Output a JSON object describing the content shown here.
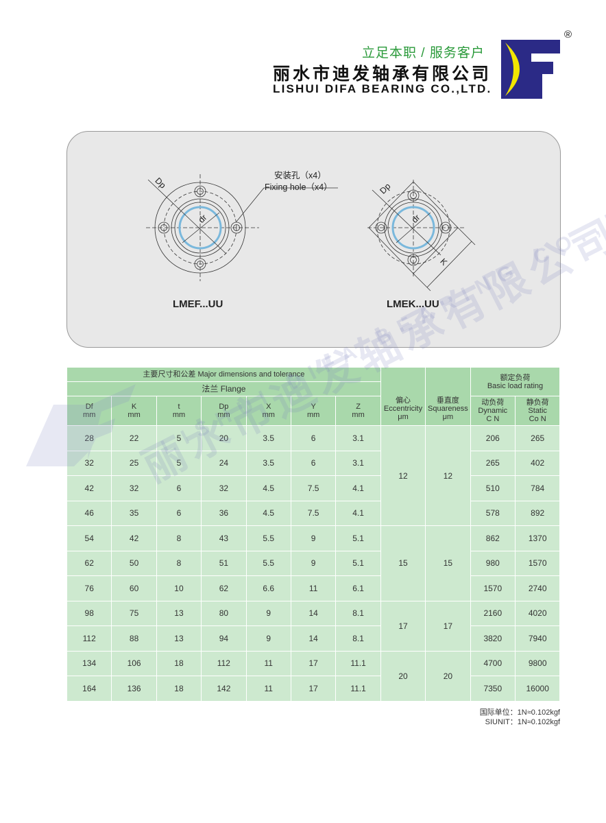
{
  "header": {
    "slogan": "立足本职 / 服务客户",
    "company_cn": "丽水市迪发轴承有限公司",
    "company_en": "LISHUI DIFA BEARING CO.,LTD.",
    "logo_text": "DF",
    "registered_mark": "®",
    "colors": {
      "logo_blue": "#2b2a86",
      "logo_yellow": "#f2e600",
      "slogan_green": "#2a9a3a"
    }
  },
  "drawing": {
    "fixing_hole_cn": "安装孔（x4）",
    "fixing_hole_en": "Fixing hole（x4）",
    "dim_dp": "Dp",
    "dim_dr": "dr",
    "dim_k": "K",
    "model_round": "LMEF...UU",
    "model_square": "LMEK...UU"
  },
  "watermark": {
    "cn": "丽水市迪发轴承有限公司",
    "en": "LISHUI DIFA BEARING CO.,LTD."
  },
  "table": {
    "group_header": "主要尺寸和公差 Major dimensions and tolerance",
    "flange_header": "法兰 Flange",
    "eccentricity": {
      "cn": "偏心",
      "en": "Eccentricity",
      "unit": "μm"
    },
    "squareness": {
      "cn": "垂直度",
      "en": "Squareness",
      "unit": "μm"
    },
    "load_rating": {
      "cn": "额定负荷",
      "en": "Basic load rating"
    },
    "dynamic": {
      "cn": "动负荷",
      "en": "Dynamic",
      "unit": "C N"
    },
    "static": {
      "cn": "静负荷",
      "en": "Static",
      "unit": "Co N"
    },
    "columns": [
      {
        "name": "Df",
        "unit": "mm"
      },
      {
        "name": "K",
        "unit": "mm"
      },
      {
        "name": "t",
        "unit": "mm"
      },
      {
        "name": "Dp",
        "unit": "mm"
      },
      {
        "name": "X",
        "unit": "mm"
      },
      {
        "name": "Y",
        "unit": "mm"
      },
      {
        "name": "Z",
        "unit": "mm"
      }
    ],
    "rows": [
      [
        "28",
        "22",
        "5",
        "20",
        "3.5",
        "6",
        "3.1",
        "206",
        "265"
      ],
      [
        "32",
        "25",
        "5",
        "24",
        "3.5",
        "6",
        "3.1",
        "265",
        "402"
      ],
      [
        "42",
        "32",
        "6",
        "32",
        "4.5",
        "7.5",
        "4.1",
        "510",
        "784"
      ],
      [
        "46",
        "35",
        "6",
        "36",
        "4.5",
        "7.5",
        "4.1",
        "578",
        "892"
      ],
      [
        "54",
        "42",
        "8",
        "43",
        "5.5",
        "9",
        "5.1",
        "862",
        "1370"
      ],
      [
        "62",
        "50",
        "8",
        "51",
        "5.5",
        "9",
        "5.1",
        "980",
        "1570"
      ],
      [
        "76",
        "60",
        "10",
        "62",
        "6.6",
        "11",
        "6.1",
        "1570",
        "2740"
      ],
      [
        "98",
        "75",
        "13",
        "80",
        "9",
        "14",
        "8.1",
        "2160",
        "4020"
      ],
      [
        "112",
        "88",
        "13",
        "94",
        "9",
        "14",
        "8.1",
        "3820",
        "7940"
      ],
      [
        "134",
        "106",
        "18",
        "112",
        "11",
        "17",
        "11.1",
        "4700",
        "9800"
      ],
      [
        "164",
        "136",
        "18",
        "142",
        "11",
        "17",
        "11.1",
        "7350",
        "16000"
      ]
    ],
    "tolerance_groups": [
      {
        "rows": 4,
        "eccentricity": "12",
        "squareness": "12"
      },
      {
        "rows": 3,
        "eccentricity": "15",
        "squareness": "15"
      },
      {
        "rows": 2,
        "eccentricity": "17",
        "squareness": "17"
      },
      {
        "rows": 2,
        "eccentricity": "20",
        "squareness": "20"
      }
    ]
  },
  "footer": {
    "unit_cn": "国际单位：1N≈0.102kgf",
    "unit_en": "SIUNIT：1N≈0.102kgf"
  }
}
